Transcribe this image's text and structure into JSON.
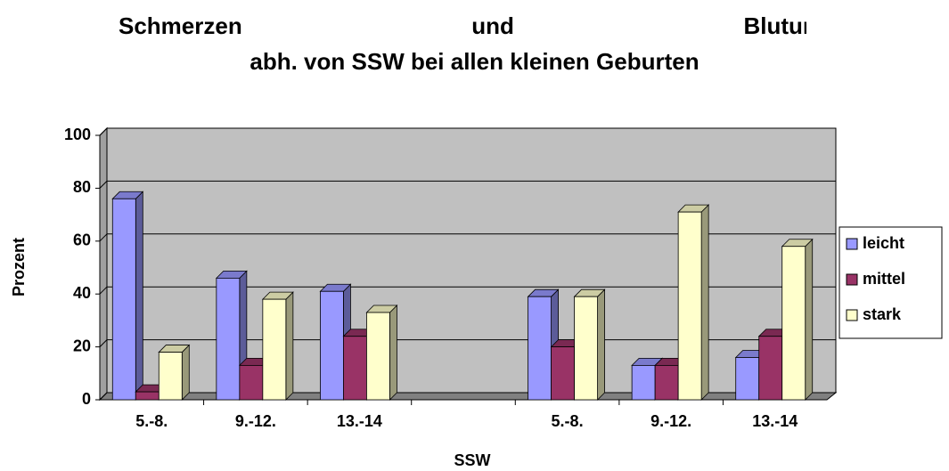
{
  "chart_data": {
    "type": "bar3d",
    "title": [
      "Schmerzen und Blutungen",
      "abh. von SSW bei allen kleinen Geburten"
    ],
    "x_label": "SSW",
    "y_label": "Prozent",
    "categories": [
      "5.-8.",
      "9.-12.",
      "13.-14",
      null,
      "5.-8.",
      "9.-12.",
      "13.-14"
    ],
    "series": [
      {
        "name": "leicht",
        "color": "#9999ff",
        "values": [
          76,
          46,
          41,
          null,
          39,
          13,
          16
        ]
      },
      {
        "name": "mittel",
        "color": "#993366",
        "values": [
          3,
          13,
          24,
          null,
          20,
          13,
          24
        ]
      },
      {
        "name": "stark",
        "color": "#ffffcc",
        "values": [
          18,
          38,
          33,
          null,
          39,
          71,
          58
        ]
      }
    ],
    "ylim": [
      0,
      100
    ],
    "yticks": [
      0,
      20,
      40,
      60,
      80,
      100
    ],
    "grid": true,
    "legend": "right"
  }
}
